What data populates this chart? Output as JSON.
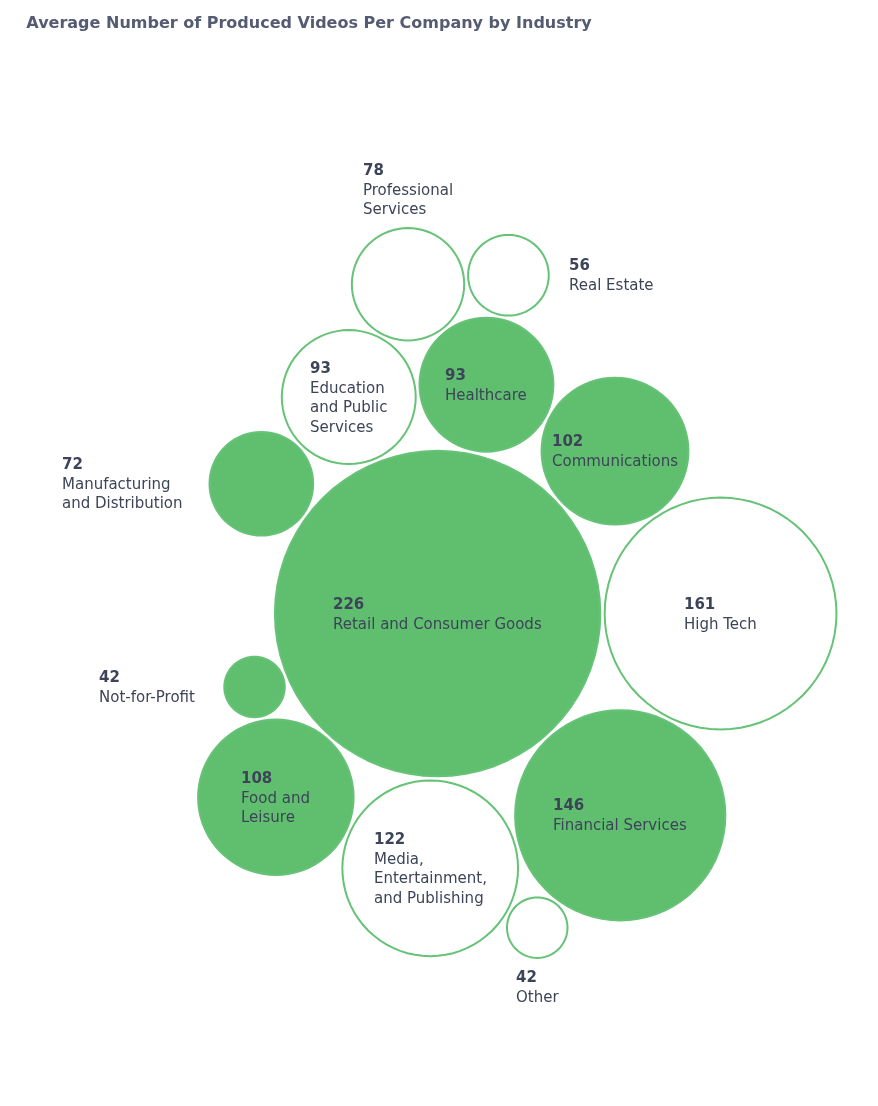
{
  "chart_data": {
    "type": "other",
    "title": "Average Number of Produced Videos Per Company by Industry",
    "categories": [
      "Other",
      "Professional Services",
      "Real Estate",
      "Healthcare",
      "Food and Leisure",
      "Communications",
      "Education and Public Services",
      "Media, Entertainment, and Publishing",
      "Financial Services",
      "Retail and Consumer Goods",
      "High Tech",
      "Not-for-Profit",
      "Manufacturing and Distribution"
    ],
    "values": [
      42,
      78,
      56,
      93,
      108,
      102,
      93,
      122,
      146,
      226,
      161,
      42,
      72
    ],
    "color": "#66c276",
    "colors": [
      "#ffffff",
      "#ffffff",
      "#ffffff",
      "#5fbf6f",
      "#5fbf6f",
      "#5fbf6f",
      "#ffffff",
      "#ffffff",
      "#5fbf6f",
      "#5fbf6f",
      "#ffffff",
      "#5fbf6f",
      "#5fbf6f"
    ],
    "data_labels": true
  }
}
